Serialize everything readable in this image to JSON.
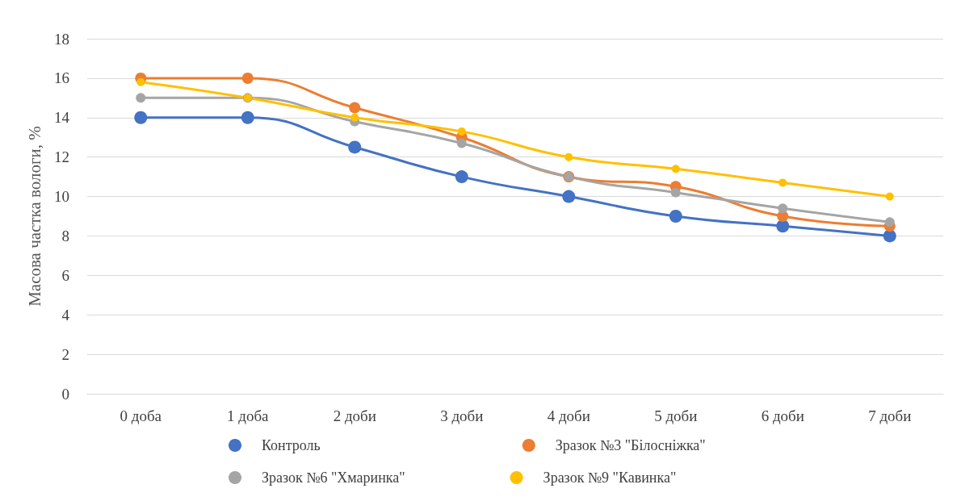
{
  "chart_data": {
    "type": "line",
    "ylabel": "Масова частка вологи, %",
    "categories": [
      "0 доба",
      "1 доба",
      "2 доби",
      "3 доби",
      "4 доби",
      "5 доби",
      "6 доби",
      "7 доби"
    ],
    "series": [
      {
        "name": "Контроль",
        "color": "#4472c4",
        "values": [
          14,
          14,
          12.5,
          11,
          10,
          9,
          8.5,
          8
        ]
      },
      {
        "name": "Зразок №3 \"Білосніжка\"",
        "color": "#ed7d31",
        "values": [
          16,
          16,
          14.5,
          13,
          11,
          10.5,
          9,
          8.5
        ]
      },
      {
        "name": "Зразок №6 \"Хмаринка\"",
        "color": "#a5a5a5",
        "values": [
          15,
          15,
          13.8,
          12.7,
          11,
          10.2,
          9.4,
          8.7
        ]
      },
      {
        "name": "Зразок №9 \"Кавинка\"",
        "color": "#ffc000",
        "values": [
          15.8,
          15,
          14,
          13.3,
          12,
          11.4,
          10.7,
          10
        ]
      }
    ],
    "ylim": [
      0,
      18
    ],
    "yticks": [
      0,
      2,
      4,
      6,
      8,
      10,
      12,
      14,
      16,
      18
    ],
    "grid": "y",
    "legend": "bottom",
    "marker": "circle",
    "line_style": "solid"
  }
}
